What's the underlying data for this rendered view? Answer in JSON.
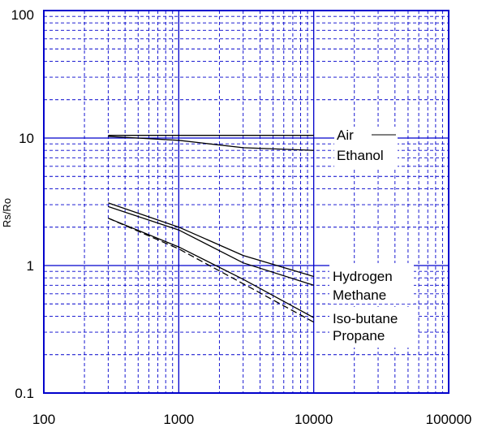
{
  "chart_data": {
    "type": "line",
    "title": "",
    "xlabel": "",
    "ylabel": "Rs/Ro",
    "x_scale": "log",
    "y_scale": "log",
    "xlim": [
      100,
      100000
    ],
    "ylim": [
      0.1,
      100
    ],
    "grid": true,
    "x_tick_labels": [
      "100",
      "1000",
      "10000",
      "100000"
    ],
    "y_tick_labels": [
      "100",
      "10",
      "1",
      "0.1"
    ],
    "colors": {
      "grid": "#0000cc",
      "series": "#000000",
      "text": "#000000"
    },
    "series": [
      {
        "name": "Air",
        "dash": false,
        "x": [
          300,
          10000
        ],
        "y": [
          10.5,
          10.5
        ]
      },
      {
        "name": "Ethanol",
        "dash": false,
        "x": [
          300,
          1000,
          3000,
          10000
        ],
        "y": [
          10.3,
          9.6,
          8.4,
          8.0
        ]
      },
      {
        "name": "Hydrogen",
        "dash": false,
        "x": [
          300,
          1000,
          3000,
          10000
        ],
        "y": [
          3.1,
          2.0,
          1.2,
          0.82
        ]
      },
      {
        "name": "Methane",
        "dash": false,
        "x": [
          300,
          1000,
          3000,
          10000
        ],
        "y": [
          2.9,
          1.9,
          1.05,
          0.7
        ]
      },
      {
        "name": "Iso-butane",
        "dash": false,
        "x": [
          300,
          1000,
          3000,
          10000
        ],
        "y": [
          2.35,
          1.4,
          0.78,
          0.39
        ]
      },
      {
        "name": "Propane",
        "dash": true,
        "x": [
          300,
          1000,
          3000,
          10000
        ],
        "y": [
          2.35,
          1.35,
          0.72,
          0.36
        ]
      }
    ],
    "annotations": [
      "Air",
      "Ethanol",
      "Hydrogen",
      "Methane",
      "Iso-butane",
      "Propane"
    ]
  }
}
